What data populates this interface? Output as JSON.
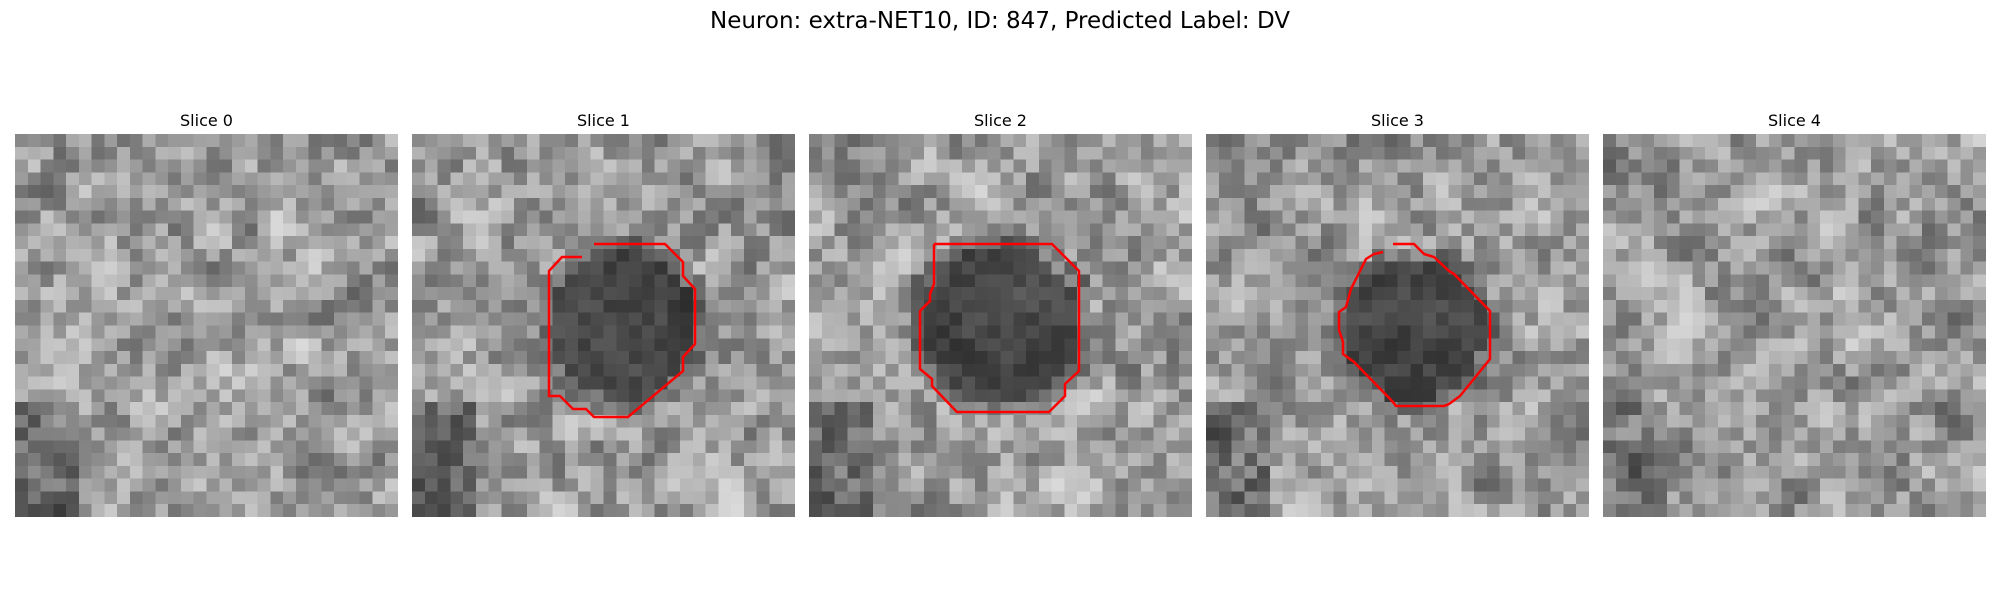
{
  "suptitle": "Neuron: extra-NET10, ID: 847, Predicted Label: DV",
  "contour_color": "#ff0000",
  "panels": [
    {
      "title": "Slice 0",
      "has_contour": false,
      "pattern": "speckle-light"
    },
    {
      "title": "Slice 1",
      "has_contour": true,
      "pattern": "dark-soma"
    },
    {
      "title": "Slice 2",
      "has_contour": true,
      "pattern": "dark-soma"
    },
    {
      "title": "Slice 3",
      "has_contour": true,
      "pattern": "dark-soma"
    },
    {
      "title": "Slice 4",
      "has_contour": false,
      "pattern": "speckle-light"
    }
  ]
}
